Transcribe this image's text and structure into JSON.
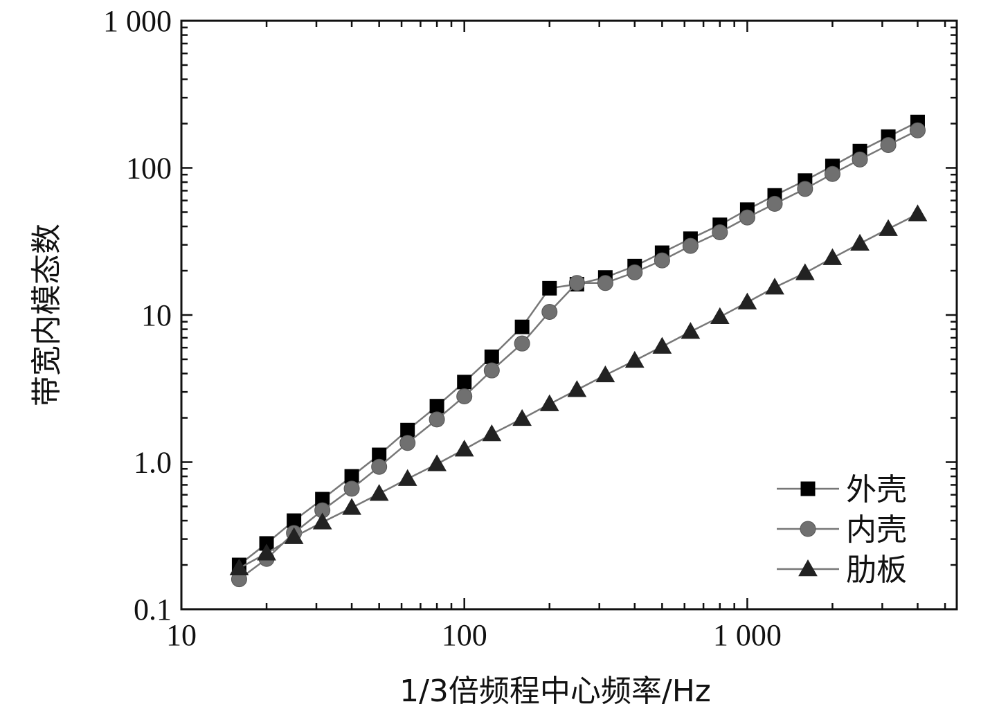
{
  "chart_data": {
    "type": "line",
    "x_scale": "log",
    "y_scale": "log",
    "xlim": [
      10,
      5500
    ],
    "ylim": [
      0.1,
      1000
    ],
    "xlabel": "1/3倍频程中心频率/Hz",
    "ylabel": "带宽内模态数",
    "x_ticks": [
      {
        "value": 10,
        "label": "10"
      },
      {
        "value": 100,
        "label": "100"
      },
      {
        "value": 1000,
        "label": "1 000"
      }
    ],
    "y_ticks": [
      {
        "value": 0.1,
        "label": "0.1"
      },
      {
        "value": 1,
        "label": "1.0"
      },
      {
        "value": 10,
        "label": "10"
      },
      {
        "value": 100,
        "label": "100"
      },
      {
        "value": 1000,
        "label": "1 000"
      }
    ],
    "legend": {
      "position": "bottom-right"
    },
    "x": [
      16,
      20,
      25,
      31.5,
      40,
      50,
      63,
      80,
      100,
      125,
      160,
      200,
      250,
      315,
      400,
      500,
      630,
      800,
      1000,
      1250,
      1600,
      2000,
      2500,
      3150,
      4000
    ],
    "series": [
      {
        "name": "外壳",
        "marker": "square",
        "color": "#000000",
        "values": [
          0.2,
          0.28,
          0.4,
          0.56,
          0.8,
          1.12,
          1.65,
          2.4,
          3.5,
          5.2,
          8.3,
          15.2,
          16.2,
          18.0,
          21.5,
          26.5,
          33.0,
          41.0,
          52.0,
          65.0,
          82.0,
          103.0,
          130.0,
          163.0,
          205.0
        ]
      },
      {
        "name": "内壳",
        "marker": "circle",
        "color": "#707070",
        "values": [
          0.16,
          0.22,
          0.33,
          0.47,
          0.66,
          0.93,
          1.35,
          1.95,
          2.8,
          4.2,
          6.4,
          10.5,
          16.5,
          16.5,
          19.5,
          23.5,
          29.5,
          36.5,
          46.0,
          57.0,
          72.0,
          91.0,
          114.0,
          143.0,
          180.0
        ]
      },
      {
        "name": "肋板",
        "marker": "triangle",
        "color": "#222222",
        "values": [
          0.19,
          0.24,
          0.31,
          0.39,
          0.49,
          0.61,
          0.77,
          0.97,
          1.22,
          1.55,
          1.97,
          2.48,
          3.1,
          3.9,
          4.9,
          6.1,
          7.7,
          9.7,
          12.2,
          15.4,
          19.3,
          24.4,
          30.6,
          38.5,
          48.5
        ]
      }
    ]
  }
}
